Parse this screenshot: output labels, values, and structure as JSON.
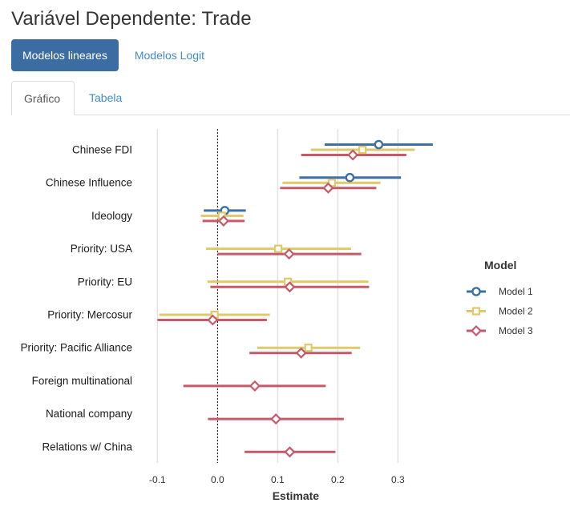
{
  "page": {
    "title": "Variável Dependente: Trade"
  },
  "pills": [
    {
      "label": "Modelos lineares",
      "active": true
    },
    {
      "label": "Modelos Logit",
      "active": false
    }
  ],
  "tabs": [
    {
      "label": "Gráfico",
      "active": true
    },
    {
      "label": "Tabela",
      "active": false
    }
  ],
  "chart_data": {
    "type": "coefficient-plot",
    "xlabel": "Estimate",
    "xlim": [
      -0.1,
      0.3
    ],
    "xticks": [
      -0.1,
      0.0,
      0.1,
      0.2,
      0.3
    ],
    "xtick_labels": [
      "-0.1",
      "0.0",
      "0.1",
      "0.2",
      "0.3"
    ],
    "reference_line": 0,
    "grid": true,
    "legend": {
      "title": "Model",
      "position": "right"
    },
    "categories": [
      "Chinese FDI",
      "Chinese Influence",
      "Ideology",
      "Priority: USA",
      "Priority: EU",
      "Priority: Mercosur",
      "Priority: Pacific Alliance",
      "Foreign multinational",
      "National company",
      "Relations w/ China"
    ],
    "series": [
      {
        "name": "Model 1",
        "color": "#3e6fa6",
        "marker": "circle",
        "points": [
          {
            "category": "Chinese FDI",
            "estimate": 0.268,
            "low": 0.178,
            "high": 0.358
          },
          {
            "category": "Chinese Influence",
            "estimate": 0.22,
            "low": 0.136,
            "high": 0.305
          },
          {
            "category": "Ideology",
            "estimate": 0.012,
            "low": -0.023,
            "high": 0.047
          }
        ]
      },
      {
        "name": "Model 2",
        "color": "#dfc96a",
        "marker": "square",
        "points": [
          {
            "category": "Chinese FDI",
            "estimate": 0.241,
            "low": 0.155,
            "high": 0.328
          },
          {
            "category": "Chinese Influence",
            "estimate": 0.19,
            "low": 0.108,
            "high": 0.271
          },
          {
            "category": "Ideology",
            "estimate": 0.007,
            "low": -0.028,
            "high": 0.043
          },
          {
            "category": "Priority: USA",
            "estimate": 0.101,
            "low": -0.019,
            "high": 0.222
          },
          {
            "category": "Priority: EU",
            "estimate": 0.117,
            "low": -0.017,
            "high": 0.251
          },
          {
            "category": "Priority: Mercosur",
            "estimate": -0.005,
            "low": -0.097,
            "high": 0.087
          },
          {
            "category": "Priority: Pacific Alliance",
            "estimate": 0.151,
            "low": 0.066,
            "high": 0.237
          }
        ]
      },
      {
        "name": "Model 3",
        "color": "#c8596a",
        "marker": "diamond",
        "points": [
          {
            "category": "Chinese FDI",
            "estimate": 0.225,
            "low": 0.139,
            "high": 0.314
          },
          {
            "category": "Chinese Influence",
            "estimate": 0.184,
            "low": 0.104,
            "high": 0.264
          },
          {
            "category": "Ideology",
            "estimate": 0.01,
            "low": -0.025,
            "high": 0.045
          },
          {
            "category": "Priority: USA",
            "estimate": 0.119,
            "low": 0.0,
            "high": 0.239
          },
          {
            "category": "Priority: EU",
            "estimate": 0.12,
            "low": -0.012,
            "high": 0.252
          },
          {
            "category": "Priority: Mercosur",
            "estimate": -0.008,
            "low": -0.1,
            "high": 0.082
          },
          {
            "category": "Priority: Pacific Alliance",
            "estimate": 0.139,
            "low": 0.053,
            "high": 0.223
          },
          {
            "category": "Foreign multinational",
            "estimate": 0.062,
            "low": -0.057,
            "high": 0.18
          },
          {
            "category": "National company",
            "estimate": 0.097,
            "low": -0.016,
            "high": 0.21
          },
          {
            "category": "Relations w/ China",
            "estimate": 0.12,
            "low": 0.045,
            "high": 0.196
          }
        ]
      }
    ]
  }
}
